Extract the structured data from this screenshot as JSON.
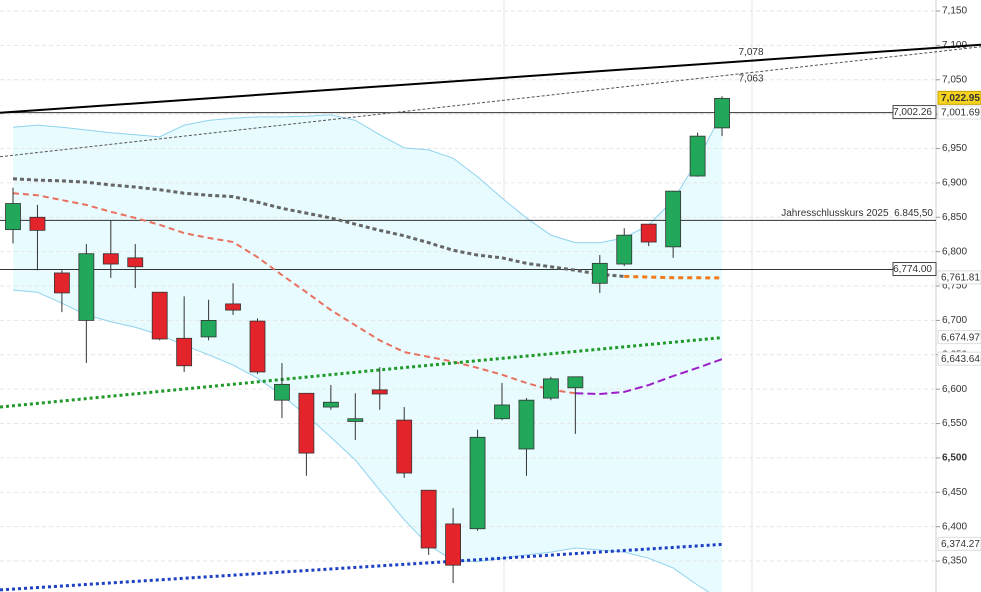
{
  "chart_data": {
    "type": "candlestick",
    "categories": [
      null,
      null,
      null,
      null,
      null,
      null,
      null,
      null,
      null,
      null,
      null,
      null,
      null,
      null,
      null,
      null,
      null,
      null,
      null,
      null,
      null,
      null,
      null,
      null,
      null,
      null,
      null,
      null,
      null,
      null
    ],
    "open": [
      6832,
      6850,
      6769,
      6700,
      6797,
      6791,
      6741,
      6674,
      6676,
      6724,
      6699,
      6584,
      6594,
      6574,
      6553,
      6599,
      6555,
      6453,
      6404,
      6397,
      6557,
      6513,
      6587,
      6602,
      6754,
      6782,
      6840,
      6807,
      6910,
      6980
    ],
    "high": [
      6893,
      6868,
      6773,
      6811,
      6846,
      6811,
      6741,
      6735,
      6730,
      6754,
      6703,
      6638,
      6594,
      6606,
      6594,
      6632,
      6574,
      6453,
      6427,
      6541,
      6609,
      6587,
      6618,
      6618,
      6795,
      6834,
      6840,
      6888,
      6973,
      7026
    ],
    "low": [
      6812,
      6773,
      6712,
      6638,
      6762,
      6747,
      6671,
      6625,
      6671,
      6708,
      6622,
      6558,
      6474,
      6570,
      6526,
      6570,
      6471,
      6359,
      6318,
      6394,
      6555,
      6474,
      6584,
      6535,
      6740,
      6779,
      6808,
      6791,
      6909,
      6968
    ],
    "close": [
      6870,
      6831,
      6740,
      6797,
      6782,
      6778,
      6673,
      6634,
      6700,
      6715,
      6625,
      6607,
      6507,
      6581,
      6557,
      6593,
      6478,
      6369,
      6344,
      6530,
      6577,
      6584,
      6615,
      6618,
      6783,
      6824,
      6814,
      6888,
      6968,
      7022.95
    ],
    "up_color": "#22a85a",
    "down_color": "#e3242b",
    "ylim": [
      6305,
      7166
    ],
    "yticks": [
      {
        "value": 6350,
        "label": "6,350"
      },
      {
        "value": 6400,
        "label": "6,400"
      },
      {
        "value": 6450,
        "label": "6,450"
      },
      {
        "value": 6500,
        "label": "6,500",
        "bold": true
      },
      {
        "value": 6550,
        "label": "6,550"
      },
      {
        "value": 6600,
        "label": "6,600"
      },
      {
        "value": 6650,
        "label": "6,650"
      },
      {
        "value": 6700,
        "label": "6,700"
      },
      {
        "value": 6750,
        "label": "6,750"
      },
      {
        "value": 6800,
        "label": "6,800"
      },
      {
        "value": 6850,
        "label": "6,850"
      },
      {
        "value": 6900,
        "label": "6,900"
      },
      {
        "value": 6950,
        "label": "6,950"
      },
      {
        "value": 7000,
        "label": "7,000"
      },
      {
        "value": 7050,
        "label": "7,050"
      },
      {
        "value": 7100,
        "label": "7,100"
      },
      {
        "value": 7150,
        "label": "7,150"
      }
    ],
    "grid": true,
    "band": {
      "upper": [
        6981,
        6984,
        6981,
        6977,
        6973,
        6970,
        6967,
        6984,
        6991,
        6994,
        6996,
        6996,
        6997,
        6999,
        6991,
        6970,
        6951,
        6948,
        6936,
        6909,
        6878,
        6849,
        6824,
        6813,
        6813,
        6820,
        6839,
        6875,
        6933,
        7001.69
      ],
      "lower": [
        6744,
        6741,
        6725,
        6708,
        6698,
        6690,
        6679,
        6664,
        6650,
        6635,
        6616,
        6591,
        6562,
        6530,
        6497,
        6453,
        6410,
        6373,
        6351,
        6349,
        6354,
        6359,
        6363,
        6369,
        6366,
        6363,
        6354,
        6340,
        6315,
        6293
      ],
      "color": "#8fd3ee",
      "fill": "#e8fbfe",
      "tag": {
        "value": 7001.69,
        "label": "7,001.69"
      }
    },
    "overlays": [
      {
        "values": [
          6906,
          6904,
          6903,
          6901,
          6897,
          6894,
          6890,
          6885,
          6882,
          6880,
          6872,
          6863,
          6856,
          6849,
          6840,
          6831,
          6823,
          6813,
          6802,
          6795,
          6791,
          6783,
          6778,
          6773,
          6767,
          6764,
          null,
          null,
          null,
          null
        ],
        "color": "#666666",
        "dash": "4 3",
        "width": 3
      },
      {
        "values": [
          null,
          null,
          null,
          null,
          null,
          null,
          null,
          null,
          null,
          null,
          null,
          null,
          null,
          null,
          null,
          null,
          null,
          null,
          null,
          null,
          null,
          null,
          null,
          null,
          null,
          6764,
          6763,
          6762,
          6762,
          6761.81
        ],
        "color": "#f07a1a",
        "dash": "5 4",
        "width": 3,
        "tag": {
          "value": 6761.81,
          "label": "6,761.81"
        }
      },
      {
        "values": [
          6885,
          6882,
          6875,
          6868,
          6858,
          6849,
          6839,
          6827,
          6820,
          6814,
          6792,
          6766,
          6741,
          6715,
          6693,
          6671,
          6654,
          6647,
          6640,
          6631,
          6621,
          6609,
          6599,
          6594,
          null,
          null,
          null,
          null,
          null,
          null
        ],
        "color": "#e8705f",
        "dash": "6 4",
        "width": 2
      },
      {
        "values": [
          null,
          null,
          null,
          null,
          null,
          null,
          null,
          null,
          null,
          null,
          null,
          null,
          null,
          null,
          null,
          null,
          null,
          null,
          null,
          null,
          null,
          null,
          null,
          6594,
          6593,
          6596,
          6606,
          6619,
          6631,
          6643.64
        ],
        "color": "#9b1fc7",
        "dash": "8 4",
        "width": 2,
        "tag": {
          "value": 6643.64,
          "label": "6,643.64"
        }
      },
      {
        "x": [
          -0.53,
          15,
          29
        ],
        "values": [
          6574,
          6628,
          6674.97
        ],
        "color": "#1f9a2a",
        "dash": "3 3",
        "width": 3,
        "tag": {
          "value": 6674.97,
          "label": "6,674.97"
        }
      },
      {
        "x": [
          -0.53,
          15,
          29
        ],
        "values": [
          6308,
          6343,
          6374.27
        ],
        "color": "#1d3fc4",
        "dash": "3 3",
        "width": 3,
        "tag": {
          "value": 6374.27,
          "label": "6,374.27"
        }
      }
    ],
    "trendlines": [
      {
        "x": [
          -0.53,
          39.59
        ],
        "values": [
          7002,
          7101
        ],
        "color": "#000000",
        "dash": "none",
        "width": 2,
        "label": {
          "value": 7078,
          "label": "7,078"
        }
      },
      {
        "x": [
          -0.53,
          39.59
        ],
        "values": [
          6938,
          7098
        ],
        "color": "#555555",
        "dash": "3 2",
        "width": 1,
        "label": {
          "value": 7063,
          "label": "7,063"
        }
      }
    ],
    "levels": [
      {
        "value": 7002.26,
        "label": "7,002.26",
        "boxed": true
      },
      {
        "value": 6845.5,
        "label": "Jahresschlusskurs 2025  6.845,50",
        "boxed": false
      },
      {
        "value": 6774,
        "label": "6,774.00",
        "boxed": true
      }
    ],
    "last_tag": {
      "value": 7022.95,
      "label": "7,022.95"
    }
  }
}
